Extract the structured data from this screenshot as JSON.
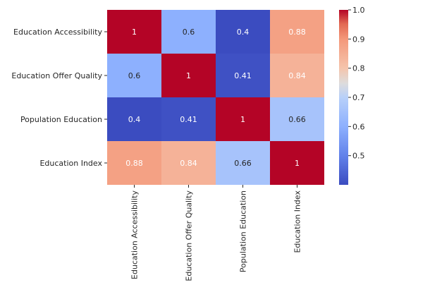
{
  "chart_data": {
    "type": "heatmap",
    "title": "",
    "xlabel": "",
    "ylabel": "",
    "x_categories": [
      "Education Accessibility",
      "Education Offer Quality",
      "Population Education",
      "Education Index"
    ],
    "y_categories": [
      "Education Accessibility",
      "Education Offer Quality",
      "Population Education",
      "Education Index"
    ],
    "values": [
      [
        1,
        0.6,
        0.4,
        0.88
      ],
      [
        0.6,
        1,
        0.41,
        0.84
      ],
      [
        0.4,
        0.41,
        1,
        0.66
      ],
      [
        0.88,
        0.84,
        0.66,
        1
      ]
    ],
    "annotations": [
      [
        "1",
        "0.6",
        "0.4",
        "0.88"
      ],
      [
        "0.6",
        "1",
        "0.41",
        "0.84"
      ],
      [
        "0.4",
        "0.41",
        "1",
        "0.66"
      ],
      [
        "0.88",
        "0.84",
        "0.66",
        "1"
      ]
    ],
    "colormap": "coolwarm",
    "colorbar": {
      "vmin": 0.4,
      "vmax": 1.0,
      "ticks": [
        0.5,
        0.6,
        0.7,
        0.8,
        0.9,
        1.0
      ],
      "tick_labels": [
        "0.5",
        "0.6",
        "0.7",
        "0.8",
        "0.9",
        "1.0"
      ],
      "placement": "right"
    },
    "grid": false
  }
}
